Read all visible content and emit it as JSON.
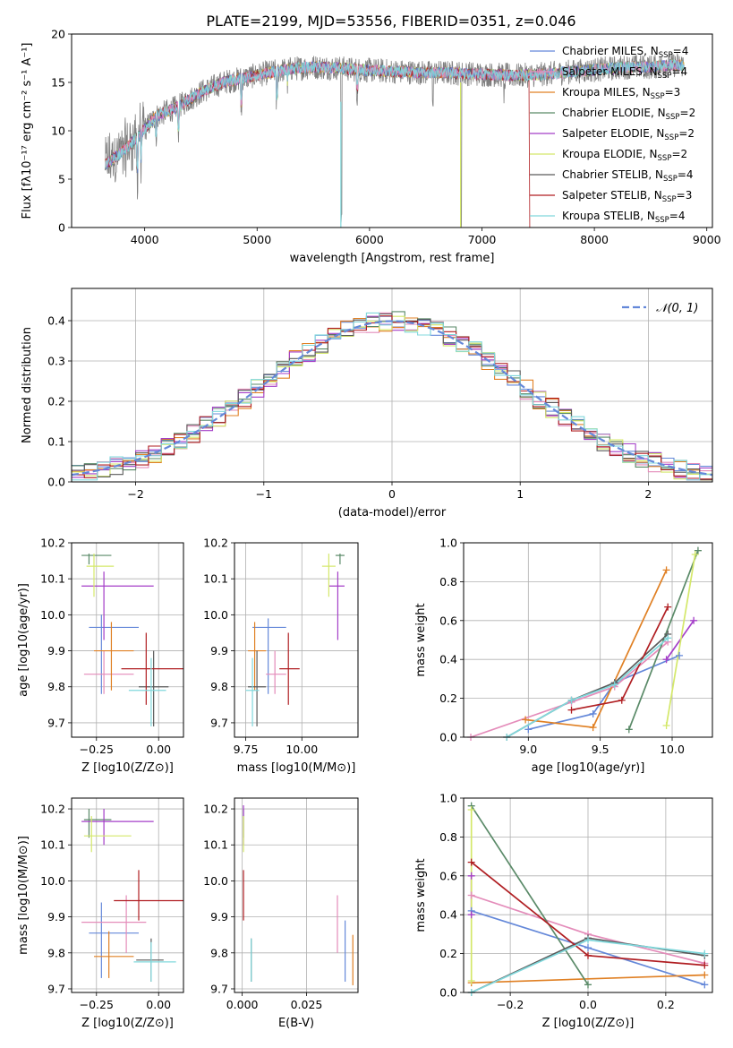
{
  "title": "PLATE=2199, MJD=53556, FIBERID=0351, z=0.046",
  "colors": {
    "c0": "#6488d9",
    "c1": "#e48cba",
    "c2": "#e08024",
    "c3": "#5a8a68",
    "c4": "#a43ec8",
    "c5": "#d4e86a",
    "c6": "#5a5a5a",
    "c7": "#b01e22",
    "c8": "#80d8dc",
    "spec": "#7f7f7f",
    "grid": "#b0b0b0"
  },
  "models": [
    "Chabrier MILES",
    "Salpeter MILES",
    "Kroupa MILES",
    "Chabrier ELODIE",
    "Salpeter ELODIE",
    "Kroupa ELODIE",
    "Chabrier STELIB",
    "Salpeter STELIB",
    "Kroupa STELIB"
  ],
  "chart_data": [
    {
      "id": "spectrum",
      "type": "line",
      "xlabel": "wavelength [Angstrom, rest frame]",
      "ylabel": "Flux [fλ10⁻¹⁷ erg cm⁻² s⁻¹ A⁻¹]",
      "xlim": [
        3350,
        9050
      ],
      "ylim": [
        0,
        20
      ],
      "xticks": [
        4000,
        5000,
        6000,
        7000,
        8000,
        9000
      ],
      "yticks": [
        0,
        5,
        10,
        15,
        20
      ],
      "continuum": {
        "x": [
          3650,
          3800,
          3950,
          4100,
          4300,
          4500,
          4700,
          4900,
          5100,
          5300,
          5500,
          5700,
          5900,
          6100,
          6300,
          6500,
          6700,
          6900,
          7100,
          7300,
          7500,
          7700,
          7900,
          8100,
          8300,
          8500,
          8700,
          8800
        ],
        "y": [
          6.5,
          7.8,
          9.5,
          11.5,
          12.5,
          14.0,
          15.0,
          15.5,
          16.0,
          16.4,
          16.6,
          16.5,
          16.3,
          16.2,
          16.1,
          16.0,
          16.0,
          15.9,
          15.8,
          15.7,
          15.8,
          16.0,
          16.2,
          16.4,
          16.6,
          16.6,
          16.8,
          16.8
        ]
      },
      "legend": [
        "Chabrier MILES, N_SSP=4",
        "Salpeter MILES, N_SSP=4",
        "Kroupa MILES, N_SSP=3",
        "Chabrier ELODIE, N_SSP=2",
        "Salpeter ELODIE, N_SSP=2",
        "Kroupa ELODIE, N_SSP=2",
        "Chabrier STELIB, N_SSP=4",
        "Salpeter STELIB, N_SSP=3",
        "Kroupa STELIB, N_SSP=4"
      ],
      "legend_main": [
        "Chabrier MILES, N",
        "Salpeter MILES, N",
        "Kroupa MILES, N",
        "Chabrier ELODIE, N",
        "Salpeter ELODIE, N",
        "Kroupa ELODIE, N",
        "Chabrier STELIB, N",
        "Salpeter STELIB, N",
        "Kroupa STELIB, N"
      ],
      "legend_sub": "SSP",
      "legend_val": [
        "=4",
        "=4",
        "=3",
        "=2",
        "=2",
        "=2",
        "=4",
        "=3",
        "=4"
      ]
    },
    {
      "id": "residuals",
      "type": "step",
      "xlabel": "(data-model)/error",
      "ylabel": "Normed distribution",
      "xlim": [
        -2.5,
        2.5
      ],
      "ylim": [
        0,
        0.48
      ],
      "xticks": [
        -2,
        -1,
        0,
        1,
        2
      ],
      "xtick_labels": [
        "−2",
        "−1",
        "0",
        "1",
        "2"
      ],
      "yticks": [
        0,
        0.1,
        0.2,
        0.3,
        0.4
      ],
      "ytick_labels": [
        "0.0",
        "0.1",
        "0.2",
        "0.3",
        "0.4"
      ],
      "bin_width": 0.1,
      "normal_label": "𝒩(0, 1)"
    },
    {
      "id": "age_vs_Z",
      "type": "errorbar",
      "xlabel": "Z [log10(Z/Z⊙)]",
      "ylabel": "age  [log10(age/yr)]",
      "xlim": [
        -0.35,
        0.1
      ],
      "ylim": [
        9.66,
        10.2
      ],
      "xticks": [
        -0.25,
        0.0
      ],
      "xtick_labels": [
        "−0.25",
        "0.00"
      ],
      "yticks": [
        9.7,
        9.8,
        9.9,
        10.0,
        10.1,
        10.2
      ],
      "ytick_labels": [
        "9.7",
        "9.8",
        "9.9",
        "10.0",
        "10.1",
        "10.2"
      ],
      "points": [
        {
          "c": "c0",
          "x": -0.23,
          "y": 9.965,
          "xe": [
            -0.28,
            -0.08
          ],
          "ye": [
            9.78,
            10.0
          ]
        },
        {
          "c": "c1",
          "x": -0.22,
          "y": 9.835,
          "xe": [
            -0.3,
            -0.1
          ],
          "ye": [
            9.78,
            9.9
          ]
        },
        {
          "c": "c2",
          "x": -0.19,
          "y": 9.9,
          "xe": [
            -0.26,
            -0.1
          ],
          "ye": [
            9.79,
            9.98
          ]
        },
        {
          "c": "c3",
          "x": -0.28,
          "y": 10.165,
          "xe": [
            -0.31,
            -0.19
          ],
          "ye": [
            10.14,
            10.17
          ]
        },
        {
          "c": "c4",
          "x": -0.22,
          "y": 10.08,
          "xe": [
            -0.31,
            -0.02
          ],
          "ye": [
            9.93,
            10.12
          ]
        },
        {
          "c": "c5",
          "x": -0.26,
          "y": 10.135,
          "xe": [
            -0.29,
            -0.18
          ],
          "ye": [
            10.05,
            10.17
          ]
        },
        {
          "c": "c6",
          "x": -0.02,
          "y": 9.8,
          "xe": [
            -0.08,
            0.04
          ],
          "ye": [
            9.69,
            9.9
          ]
        },
        {
          "c": "c7",
          "x": -0.05,
          "y": 9.85,
          "xe": [
            -0.15,
            0.1
          ],
          "ye": [
            9.75,
            9.95
          ]
        },
        {
          "c": "c8",
          "x": -0.03,
          "y": 9.79,
          "xe": [
            -0.12,
            0.03
          ],
          "ye": [
            9.69,
            9.88
          ]
        }
      ]
    },
    {
      "id": "age_vs_mass",
      "type": "errorbar",
      "xlabel": "mass [log10(M/M⊙)]",
      "ylabel": "",
      "xlim": [
        9.7,
        10.25
      ],
      "ylim": [
        9.66,
        10.2
      ],
      "xticks": [
        9.75,
        10.0
      ],
      "xtick_labels": [
        "9.75",
        "10.00"
      ],
      "yticks": [
        9.7,
        9.8,
        9.9,
        10.0,
        10.1,
        10.2
      ],
      "ytick_labels": [
        "9.7",
        "9.8",
        "9.9",
        "10.0",
        "10.1",
        "10.2"
      ],
      "points": [
        {
          "c": "c0",
          "x": 9.85,
          "y": 9.965,
          "xe": [
            9.78,
            9.93
          ],
          "ye": [
            9.78,
            9.99
          ]
        },
        {
          "c": "c1",
          "x": 9.88,
          "y": 9.835,
          "xe": [
            9.84,
            9.93
          ],
          "ye": [
            9.78,
            9.9
          ]
        },
        {
          "c": "c2",
          "x": 9.79,
          "y": 9.9,
          "xe": [
            9.76,
            9.84
          ],
          "ye": [
            9.79,
            9.98
          ]
        },
        {
          "c": "c3",
          "x": 10.17,
          "y": 10.165,
          "xe": [
            10.15,
            10.19
          ],
          "ye": [
            10.14,
            10.17
          ]
        },
        {
          "c": "c4",
          "x": 10.16,
          "y": 10.08,
          "xe": [
            10.12,
            10.19
          ],
          "ye": [
            9.93,
            10.12
          ]
        },
        {
          "c": "c5",
          "x": 10.12,
          "y": 10.135,
          "xe": [
            10.09,
            10.15
          ],
          "ye": [
            10.05,
            10.17
          ]
        },
        {
          "c": "c6",
          "x": 9.8,
          "y": 9.8,
          "xe": [
            9.76,
            9.84
          ],
          "ye": [
            9.69,
            9.9
          ]
        },
        {
          "c": "c7",
          "x": 9.94,
          "y": 9.85,
          "xe": [
            9.9,
            9.99
          ],
          "ye": [
            9.75,
            9.95
          ]
        },
        {
          "c": "c8",
          "x": 9.78,
          "y": 9.79,
          "xe": [
            9.75,
            9.81
          ],
          "ye": [
            9.69,
            9.88
          ]
        }
      ]
    },
    {
      "id": "massweight_vs_age",
      "type": "line",
      "xlabel": "age  [log10(age/yr)]",
      "ylabel": "mass weight",
      "xlim": [
        8.55,
        10.28
      ],
      "ylim": [
        0,
        1.0
      ],
      "xticks": [
        9.0,
        9.5,
        10.0
      ],
      "xtick_labels": [
        "9.0",
        "9.5",
        "10.0"
      ],
      "yticks": [
        0,
        0.2,
        0.4,
        0.6,
        0.8,
        1.0
      ],
      "ytick_labels": [
        "0.0",
        "0.2",
        "0.4",
        "0.6",
        "0.8",
        "1.0"
      ],
      "series": [
        {
          "c": "c0",
          "x": [
            9.0,
            9.45,
            9.6,
            10.05
          ],
          "y": [
            0.04,
            0.12,
            0.28,
            0.42
          ]
        },
        {
          "c": "c1",
          "x": [
            8.6,
            9.3,
            9.6,
            9.97
          ],
          "y": [
            0.0,
            0.18,
            0.26,
            0.49
          ]
        },
        {
          "c": "c2",
          "x": [
            8.98,
            9.45,
            9.96
          ],
          "y": [
            0.09,
            0.05,
            0.86
          ]
        },
        {
          "c": "c3",
          "x": [
            9.7,
            10.18
          ],
          "y": [
            0.04,
            0.96
          ]
        },
        {
          "c": "c4",
          "x": [
            9.96,
            10.15
          ],
          "y": [
            0.4,
            0.6
          ]
        },
        {
          "c": "c5",
          "x": [
            9.96,
            10.16
          ],
          "y": [
            0.06,
            0.94
          ]
        },
        {
          "c": "c6",
          "x": [
            8.85,
            9.3,
            9.6,
            9.97
          ],
          "y": [
            0.0,
            0.19,
            0.28,
            0.53
          ]
        },
        {
          "c": "c7",
          "x": [
            9.3,
            9.65,
            9.97
          ],
          "y": [
            0.14,
            0.19,
            0.67
          ]
        },
        {
          "c": "c8",
          "x": [
            8.85,
            9.3,
            9.6,
            9.97
          ],
          "y": [
            0.0,
            0.19,
            0.27,
            0.51
          ]
        }
      ]
    },
    {
      "id": "mass_vs_Z",
      "type": "errorbar",
      "xlabel": "Z [log10(Z/Z⊙)]",
      "ylabel": "mass [log10(M/M⊙)]",
      "xlim": [
        -0.35,
        0.1
      ],
      "ylim": [
        9.69,
        10.23
      ],
      "xticks": [
        -0.25,
        0.0
      ],
      "xtick_labels": [
        "−0.25",
        "0.00"
      ],
      "yticks": [
        9.7,
        9.8,
        9.9,
        10.0,
        10.1,
        10.2
      ],
      "ytick_labels": [
        "9.7",
        "9.8",
        "9.9",
        "10.0",
        "10.1",
        "10.2"
      ],
      "points": [
        {
          "c": "c0",
          "x": -0.23,
          "y": 9.855,
          "xe": [
            -0.28,
            -0.08
          ],
          "ye": [
            9.73,
            9.94
          ]
        },
        {
          "c": "c1",
          "x": -0.13,
          "y": 9.885,
          "xe": [
            -0.31,
            -0.05
          ],
          "ye": [
            9.8,
            9.96
          ]
        },
        {
          "c": "c2",
          "x": -0.2,
          "y": 9.79,
          "xe": [
            -0.26,
            -0.1
          ],
          "ye": [
            9.73,
            9.86
          ]
        },
        {
          "c": "c3",
          "x": -0.28,
          "y": 10.17,
          "xe": [
            -0.3,
            -0.19
          ],
          "ye": [
            10.12,
            10.2
          ]
        },
        {
          "c": "c4",
          "x": -0.22,
          "y": 10.165,
          "xe": [
            -0.31,
            -0.02
          ],
          "ye": [
            10.1,
            10.2
          ]
        },
        {
          "c": "c5",
          "x": -0.27,
          "y": 10.125,
          "xe": [
            -0.3,
            -0.11
          ],
          "ye": [
            10.08,
            10.18
          ]
        },
        {
          "c": "c6",
          "x": -0.03,
          "y": 9.78,
          "xe": [
            -0.09,
            0.02
          ],
          "ye": [
            9.72,
            9.84
          ]
        },
        {
          "c": "c7",
          "x": -0.08,
          "y": 9.945,
          "xe": [
            -0.18,
            0.1
          ],
          "ye": [
            9.89,
            10.03
          ]
        },
        {
          "c": "c8",
          "x": -0.03,
          "y": 9.775,
          "xe": [
            -0.1,
            0.07
          ],
          "ye": [
            9.72,
            9.83
          ]
        }
      ]
    },
    {
      "id": "mass_vs_ebv",
      "type": "errorbar",
      "xlabel": "E(B-V)",
      "ylabel": "",
      "xlim": [
        -0.003,
        0.045
      ],
      "ylim": [
        9.69,
        10.23
      ],
      "xticks": [
        0.0,
        0.025
      ],
      "xtick_labels": [
        "0.000",
        "0.025"
      ],
      "yticks": [
        9.7,
        9.8,
        9.9,
        10.0,
        10.1,
        10.2
      ],
      "ytick_labels": [
        "9.7",
        "9.8",
        "9.9",
        "10.0",
        "10.1",
        "10.2"
      ],
      "points": [
        {
          "c": "c0",
          "x": 0.04,
          "y": 9.81,
          "xe": [
            0.04,
            0.04
          ],
          "ye": [
            9.72,
            9.89
          ]
        },
        {
          "c": "c1",
          "x": 0.037,
          "y": 9.88,
          "xe": [
            0.037,
            0.037
          ],
          "ye": [
            9.8,
            9.96
          ]
        },
        {
          "c": "c2",
          "x": 0.043,
          "y": 9.78,
          "xe": [
            0.043,
            0.043
          ],
          "ye": [
            9.71,
            9.85
          ]
        },
        {
          "c": "c3",
          "x": 0.0005,
          "y": 10.17,
          "xe": [
            0.0005,
            0.0005
          ],
          "ye": [
            10.12,
            10.2
          ]
        },
        {
          "c": "c4",
          "x": 0.0005,
          "y": 10.165,
          "xe": [
            0.0005,
            0.0005
          ],
          "ye": [
            10.1,
            10.21
          ]
        },
        {
          "c": "c5",
          "x": 0.0005,
          "y": 10.12,
          "xe": [
            0.0005,
            0.0005
          ],
          "ye": [
            10.08,
            10.18
          ]
        },
        {
          "c": "c6",
          "x": 0.0035,
          "y": 9.78,
          "xe": [
            0.0035,
            0.0035
          ],
          "ye": [
            9.72,
            9.84
          ]
        },
        {
          "c": "c7",
          "x": 0.0005,
          "y": 9.96,
          "xe": [
            0.0005,
            0.0005
          ],
          "ye": [
            9.89,
            10.03
          ]
        },
        {
          "c": "c8",
          "x": 0.0035,
          "y": 9.77,
          "xe": [
            0.0035,
            0.0035
          ],
          "ye": [
            9.72,
            9.84
          ]
        }
      ]
    },
    {
      "id": "massweight_vs_Z",
      "type": "line",
      "xlabel": "Z [log10(Z/Z⊙)]",
      "ylabel": "mass weight",
      "xlim": [
        -0.32,
        0.32
      ],
      "ylim": [
        0,
        1.0
      ],
      "xticks": [
        -0.2,
        0.0,
        0.2
      ],
      "xtick_labels": [
        "−0.2",
        "0.0",
        "0.2"
      ],
      "yticks": [
        0,
        0.2,
        0.4,
        0.6,
        0.8,
        1.0
      ],
      "ytick_labels": [
        "0.0",
        "0.2",
        "0.4",
        "0.6",
        "0.8",
        "1.0"
      ],
      "series": [
        {
          "c": "c0",
          "x": [
            -0.3,
            0.0,
            0.3
          ],
          "y": [
            0.42,
            0.23,
            0.04
          ]
        },
        {
          "c": "c1",
          "x": [
            -0.3,
            0.0,
            0.3
          ],
          "y": [
            0.5,
            0.3,
            0.15
          ]
        },
        {
          "c": "c2",
          "x": [
            -0.3,
            0.3
          ],
          "y": [
            0.05,
            0.09
          ]
        },
        {
          "c": "c3",
          "x": [
            -0.3,
            0.0
          ],
          "y": [
            0.96,
            0.04
          ]
        },
        {
          "c": "c4",
          "x": [
            -0.3,
            -0.3
          ],
          "y": [
            0.4,
            0.6
          ]
        },
        {
          "c": "c5",
          "x": [
            -0.3,
            -0.3
          ],
          "y": [
            0.06,
            0.94
          ]
        },
        {
          "c": "c6",
          "x": [
            -0.3,
            0.0,
            0.3
          ],
          "y": [
            0.0,
            0.28,
            0.19
          ]
        },
        {
          "c": "c7",
          "x": [
            -0.3,
            0.0,
            0.3
          ],
          "y": [
            0.67,
            0.19,
            0.14
          ]
        },
        {
          "c": "c8",
          "x": [
            -0.3,
            0.0,
            0.3
          ],
          "y": [
            0.0,
            0.27,
            0.2
          ]
        }
      ]
    }
  ]
}
